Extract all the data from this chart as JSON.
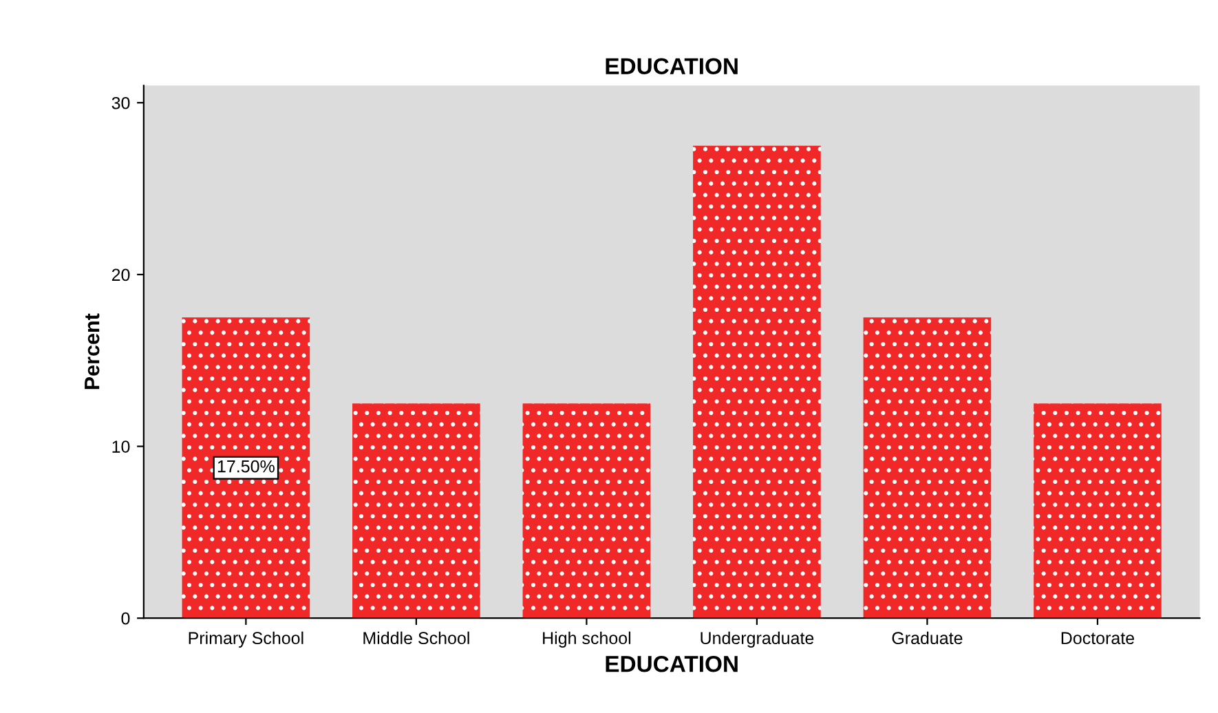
{
  "chart_data": {
    "type": "bar",
    "title": "EDUCATION",
    "xlabel": "EDUCATION",
    "ylabel": "Percent",
    "categories": [
      "Primary School",
      "Middle School",
      "High school",
      "Undergraduate",
      "Graduate",
      "Doctorate"
    ],
    "values": [
      17.5,
      12.5,
      12.5,
      27.5,
      17.5,
      12.5
    ],
    "value_labels": [
      "17.50%",
      null,
      null,
      null,
      null,
      null
    ],
    "color": "#f02828",
    "ylim": [
      0,
      31
    ],
    "yticks": [
      0,
      10,
      20,
      30
    ],
    "grid": false
  }
}
